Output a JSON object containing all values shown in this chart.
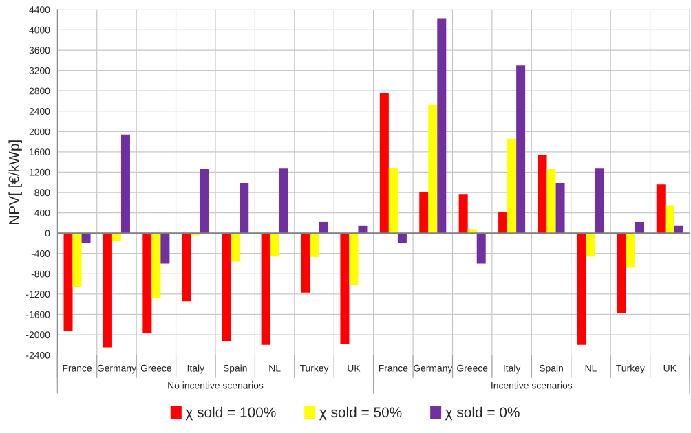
{
  "chart_data": {
    "type": "bar",
    "ylabel": "NPV[ [€/kWp]",
    "categories": [
      "France",
      "Germany",
      "Greece",
      "Italy",
      "Spain",
      "NL",
      "Turkey",
      "UK",
      "France",
      "Germany",
      "Greece",
      "Italy",
      "Spain",
      "NL",
      "Turkey",
      "UK"
    ],
    "series": [
      {
        "name": "χ sold = 100%",
        "color": "#ff0000",
        "values": [
          -1920,
          -2250,
          -1960,
          -1340,
          -2120,
          -2200,
          -1170,
          -2180,
          2760,
          800,
          770,
          410,
          1540,
          -2200,
          -1580,
          960
        ]
      },
      {
        "name": "χ sold = 50%",
        "color": "#ffff00",
        "values": [
          -1060,
          -150,
          -1280,
          -40,
          -560,
          -460,
          -470,
          -1020,
          1280,
          2520,
          80,
          1860,
          1260,
          -460,
          -680,
          550
        ]
      },
      {
        "name": "χ sold = 0%",
        "color": "#7030a0",
        "values": [
          -200,
          1940,
          -600,
          1260,
          990,
          1270,
          220,
          140,
          -200,
          4230,
          -600,
          3300,
          990,
          1270,
          220,
          140
        ]
      }
    ],
    "annotations": [
      "No incentive scenarios",
      "Incentive scenarios"
    ],
    "ylim": [
      -2400,
      4400
    ],
    "yticks": [
      -2400,
      -2000,
      -1600,
      -1200,
      -800,
      -400,
      0,
      400,
      800,
      1200,
      1600,
      2000,
      2400,
      2800,
      3200,
      3600,
      4000,
      4400
    ],
    "grid": true,
    "legend": "bottom"
  }
}
